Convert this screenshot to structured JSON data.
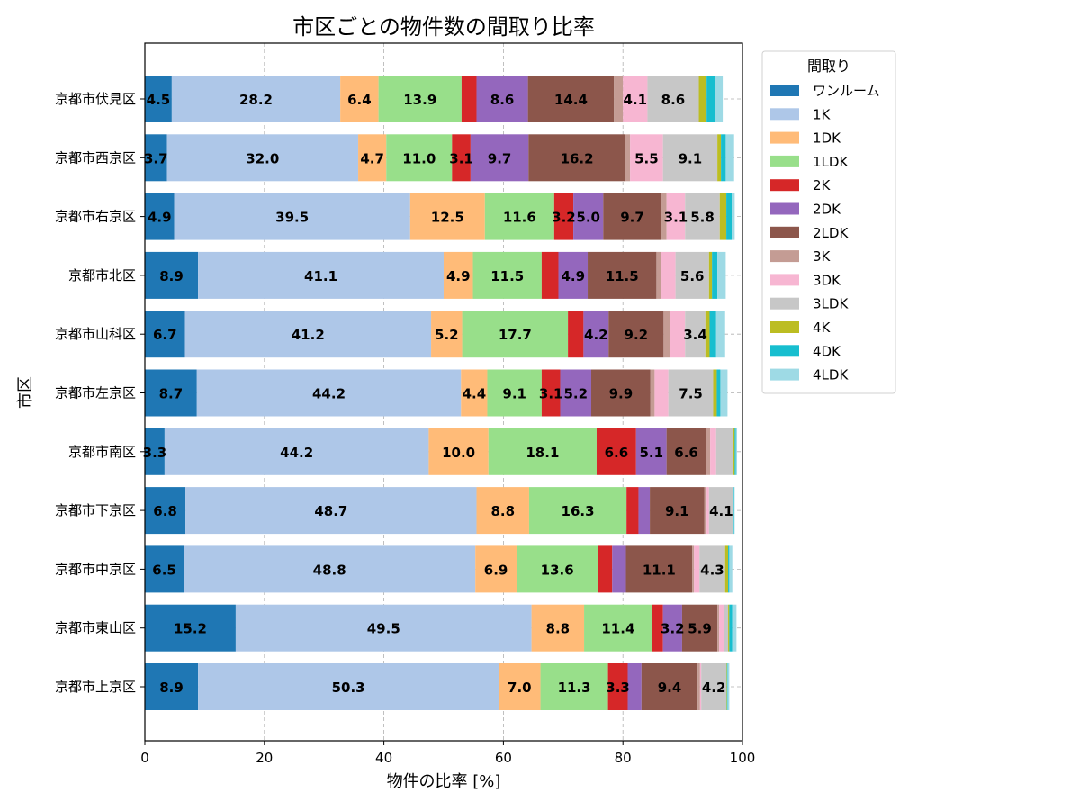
{
  "chart_data": {
    "type": "bar",
    "orientation": "horizontal",
    "stacked": true,
    "title": "市区ごとの物件数の間取り比率",
    "xlabel": "物件の比率 [%]",
    "ylabel": "市区",
    "xlim": [
      0,
      100
    ],
    "xticks": [
      0,
      20,
      40,
      60,
      80,
      100
    ],
    "grid": true,
    "legend_title": "間取り",
    "legend_position": "outside-right",
    "categories": [
      "京都市伏見区",
      "京都市西京区",
      "京都市右京区",
      "京都市北区",
      "京都市山科区",
      "京都市左京区",
      "京都市南区",
      "京都市下京区",
      "京都市中京区",
      "京都市東山区",
      "京都市上京区"
    ],
    "series": [
      {
        "name": "ワンルーム",
        "color": "#1f77b4",
        "values": [
          4.5,
          3.7,
          4.9,
          8.9,
          6.7,
          8.7,
          3.3,
          6.8,
          6.5,
          15.2,
          8.9
        ]
      },
      {
        "name": "1K",
        "color": "#aec7e8",
        "values": [
          28.2,
          32.0,
          39.5,
          41.1,
          41.2,
          44.2,
          44.2,
          48.7,
          48.8,
          49.5,
          50.3
        ]
      },
      {
        "name": "1DK",
        "color": "#ffbb78",
        "values": [
          6.4,
          4.7,
          12.5,
          4.9,
          5.2,
          4.4,
          10.0,
          8.8,
          6.9,
          8.8,
          7.0
        ]
      },
      {
        "name": "1LDK",
        "color": "#98df8a",
        "values": [
          13.9,
          11.0,
          11.6,
          11.5,
          17.7,
          9.1,
          18.1,
          16.3,
          13.6,
          11.4,
          11.3
        ]
      },
      {
        "name": "2K",
        "color": "#d62728",
        "values": [
          2.5,
          3.1,
          3.2,
          2.8,
          2.6,
          3.1,
          6.6,
          2.0,
          2.4,
          1.8,
          3.3
        ]
      },
      {
        "name": "2DK",
        "color": "#9467bd",
        "values": [
          8.6,
          9.7,
          5.0,
          4.9,
          4.2,
          5.2,
          5.1,
          1.9,
          2.3,
          3.2,
          2.3
        ]
      },
      {
        "name": "2LDK",
        "color": "#8c564b",
        "values": [
          14.4,
          16.2,
          9.7,
          11.5,
          9.2,
          9.9,
          6.6,
          9.1,
          11.1,
          5.9,
          9.4
        ]
      },
      {
        "name": "3K",
        "color": "#c49c94",
        "values": [
          1.5,
          0.8,
          0.9,
          0.8,
          1.1,
          0.7,
          0.7,
          0.4,
          0.3,
          0.3,
          0.4
        ]
      },
      {
        "name": "3DK",
        "color": "#f7b6d2",
        "values": [
          4.1,
          5.5,
          3.1,
          2.4,
          2.5,
          2.3,
          1.0,
          0.4,
          0.9,
          0.8,
          0.2
        ]
      },
      {
        "name": "3LDK",
        "color": "#c7c7c7",
        "values": [
          8.6,
          9.1,
          5.8,
          5.6,
          3.4,
          7.5,
          2.8,
          4.1,
          4.3,
          0.7,
          4.2
        ]
      },
      {
        "name": "4K",
        "color": "#bcbd22",
        "values": [
          1.3,
          0.6,
          1.1,
          0.5,
          0.7,
          0.6,
          0.3,
          0.0,
          0.5,
          0.2,
          0.1
        ]
      },
      {
        "name": "4DK",
        "color": "#17becf",
        "values": [
          1.4,
          0.8,
          0.9,
          0.9,
          1.1,
          0.6,
          0.2,
          0.1,
          0.2,
          0.5,
          0.1
        ]
      },
      {
        "name": "4LDK",
        "color": "#9edae5",
        "values": [
          1.3,
          1.4,
          0.5,
          1.4,
          1.5,
          1.2,
          0.2,
          0.1,
          0.5,
          0.7,
          0.3
        ]
      }
    ],
    "label_threshold": 3.0
  }
}
